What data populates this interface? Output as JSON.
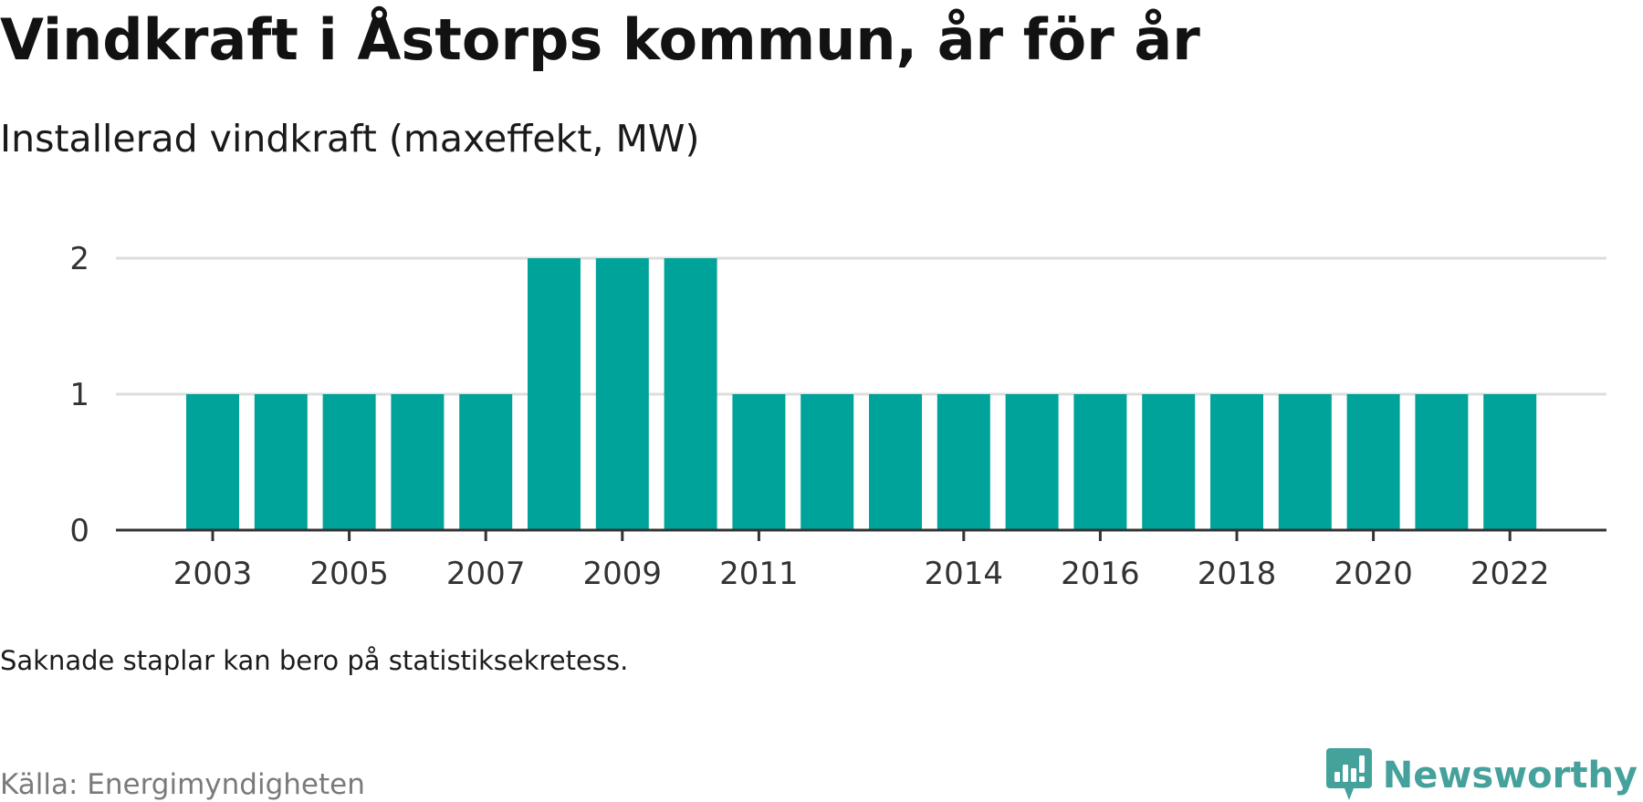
{
  "header": {
    "title": "Vindkraft i Åstorps kommun, år för år",
    "subtitle": "Installerad vindkraft (maxeffekt, MW)"
  },
  "footer": {
    "note": "Saknade staplar kan bero på statistiksekretess.",
    "source": "Källa: Energimyndigheten",
    "brand": "Newsworthy",
    "brand_icon": "newsworthy-logo-icon"
  },
  "colors": {
    "bar": "#00a39a",
    "grid": "#dddddd",
    "axis": "#333333",
    "brand": "#45a19b"
  },
  "chart_data": {
    "type": "bar",
    "title": "Vindkraft i Åstorps kommun, år för år",
    "subtitle": "Installerad vindkraft (maxeffekt, MW)",
    "xlabel": "",
    "ylabel": "",
    "categories": [
      2003,
      2004,
      2005,
      2006,
      2007,
      2008,
      2009,
      2010,
      2011,
      2012,
      2013,
      2014,
      2015,
      2016,
      2017,
      2018,
      2019,
      2020,
      2021,
      2022
    ],
    "values": [
      1,
      1,
      1,
      1,
      1,
      2,
      2,
      2,
      1,
      1,
      1,
      1,
      1,
      1,
      1,
      1,
      1,
      1,
      1,
      1
    ],
    "x_tick_labels": [
      "2003",
      "2005",
      "2007",
      "2009",
      "2011",
      "2014",
      "2016",
      "2018",
      "2020",
      "2022"
    ],
    "y_ticks": [
      0,
      1,
      2
    ],
    "ylim": [
      0,
      2
    ],
    "grid": true,
    "legend": "none"
  }
}
